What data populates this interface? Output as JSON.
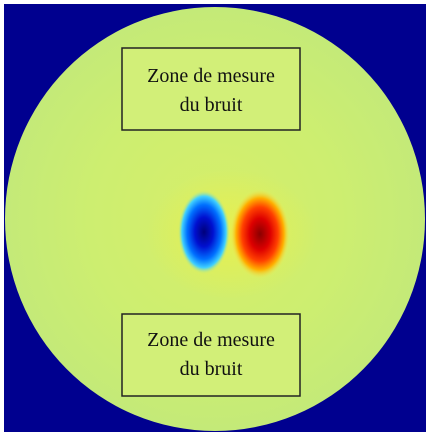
{
  "figure": {
    "boxes": [
      {
        "lines": [
          "Zone de mesure",
          "du bruit"
        ]
      },
      {
        "lines": [
          "Zone de mesure",
          "du bruit"
        ]
      }
    ]
  }
}
